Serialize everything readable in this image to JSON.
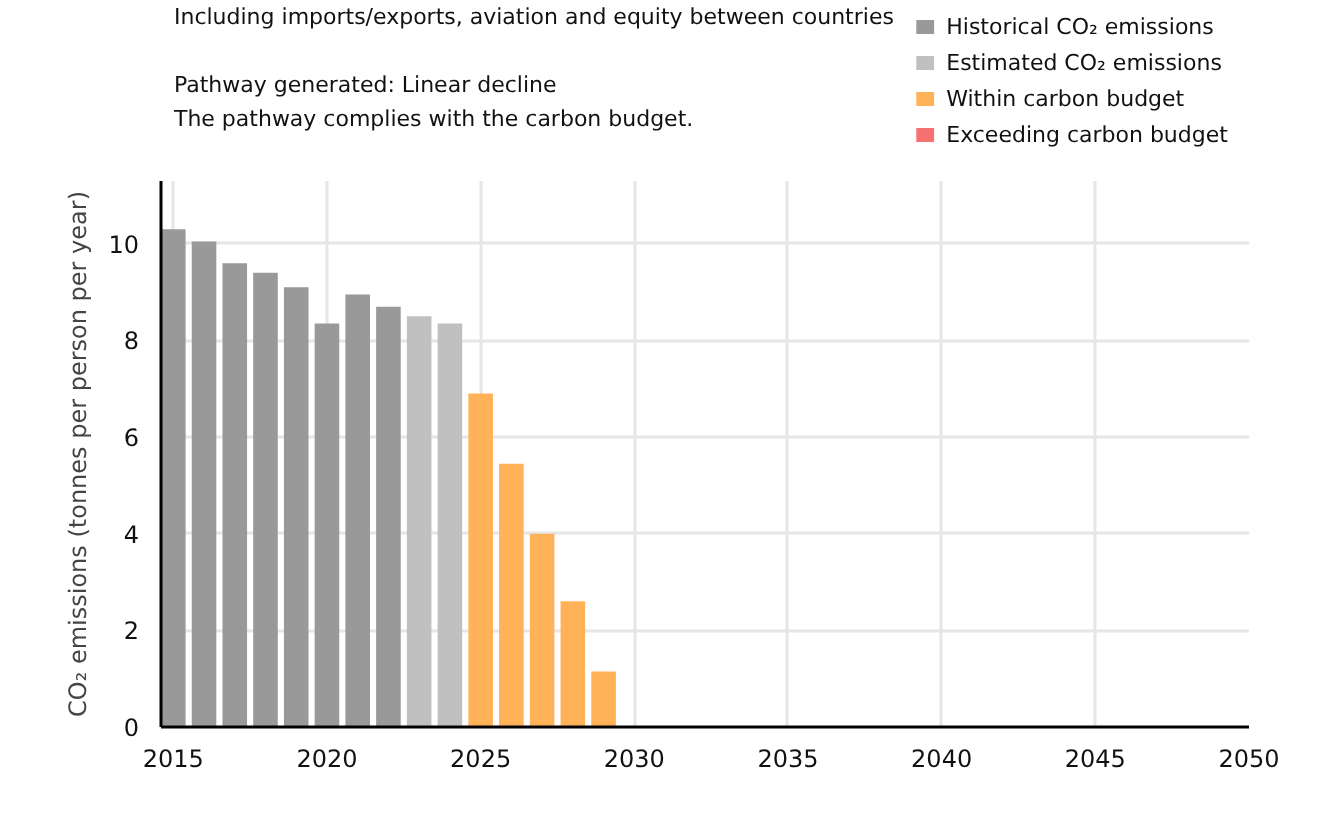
{
  "chart_data": {
    "type": "bar",
    "title": "Including imports/exports, aviation and equity between countries",
    "annotations": [
      "Pathway generated: Linear decline",
      "The pathway complies with the carbon budget."
    ],
    "ylabel": "CO₂ emissions (tonnes per person per year)",
    "xlim": [
      2014.6,
      2050
    ],
    "xticks": [
      2015,
      2020,
      2025,
      2030,
      2035,
      2040,
      2045,
      2050
    ],
    "ylim": [
      0,
      11.3
    ],
    "yticks": [
      0,
      2,
      4,
      6,
      8,
      10
    ],
    "grid": true,
    "legend": "top right",
    "series": [
      {
        "name": "Historical CO₂ emissions",
        "color": "#999999",
        "x": [
          2015,
          2016,
          2017,
          2018,
          2019,
          2020,
          2021,
          2022
        ],
        "values": [
          10.3,
          10.05,
          9.6,
          9.4,
          9.1,
          8.35,
          8.95,
          8.7
        ]
      },
      {
        "name": "Estimated CO₂ emissions",
        "color": "#c0c0c0",
        "x": [
          2023,
          2024
        ],
        "values": [
          8.5,
          8.35
        ]
      },
      {
        "name": "Within carbon budget",
        "color": "#ffb257",
        "x": [
          2025,
          2026,
          2027,
          2028,
          2029
        ],
        "values": [
          6.9,
          5.45,
          4.0,
          2.6,
          1.15
        ]
      },
      {
        "name": "Exceeding carbon budget",
        "color": "#f87171"
      }
    ]
  }
}
